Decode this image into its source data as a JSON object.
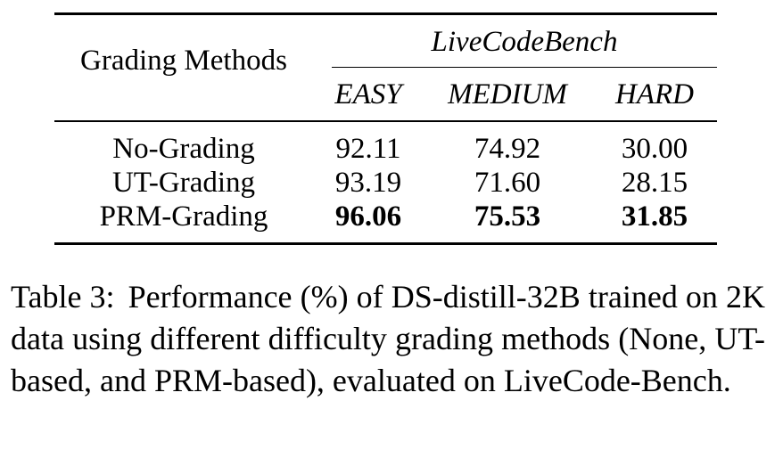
{
  "table": {
    "header": {
      "row_label": "Grading Methods",
      "group": "LiveCodeBench",
      "columns": [
        "EASY",
        "MEDIUM",
        "HARD"
      ]
    },
    "rows": [
      {
        "method": "No-Grading",
        "values": [
          "92.11",
          "74.92",
          "30.00"
        ],
        "bold": false
      },
      {
        "method": "UT-Grading",
        "values": [
          "93.19",
          "71.60",
          "28.15"
        ],
        "bold": false
      },
      {
        "method": "PRM-Grading",
        "values": [
          "96.06",
          "75.53",
          "31.85"
        ],
        "bold": true
      }
    ]
  },
  "caption": {
    "label": "Table 3:",
    "text": "Performance (%) of DS-distill-32B trained on 2K data using different difficulty grading meth­ods (None, UT-based, and PRM-based), evaluated on LiveCode-Bench."
  }
}
